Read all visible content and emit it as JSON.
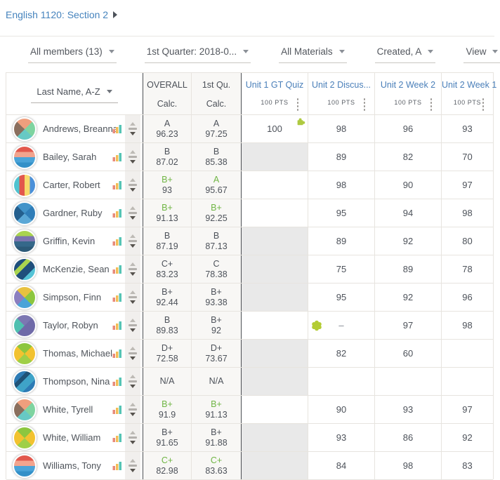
{
  "breadcrumb": {
    "label": "English 1120: Section 2"
  },
  "filters": [
    {
      "label": "All members (13)"
    },
    {
      "label": "1st Quarter: 2018-0..."
    },
    {
      "label": "All Materials"
    },
    {
      "label": "Created, A"
    },
    {
      "label": "View"
    }
  ],
  "table": {
    "name_header": "Last Name, A-Z",
    "grade_columns": [
      {
        "title": "OVERALL",
        "subtitle": "Calc."
      },
      {
        "title": "1st Qu.",
        "subtitle": "Calc."
      }
    ],
    "assignment_columns": [
      {
        "title": "Unit 1 GT Quiz",
        "points": "100 PTS"
      },
      {
        "title": "Unit 2 Discus...",
        "points": "100 PTS"
      },
      {
        "title": "Unit 2 Week 2",
        "points": "100 PTS"
      },
      {
        "title": "Unit 2 Week 1",
        "points": "100 PTS"
      }
    ],
    "rows": [
      {
        "name": "Andrews, Breanna",
        "avatar": {
          "style": "pie",
          "colors": [
            "#7fd4a0",
            "#67c9c4",
            "#8a6f5e",
            "#ef9f7d"
          ]
        },
        "overall": {
          "letter": "A",
          "value": "96.23"
        },
        "q1": {
          "letter": "A",
          "value": "97.25"
        },
        "green": false,
        "cells": [
          {
            "value": "100",
            "state": "normal",
            "icon": "puzzle-icon"
          },
          {
            "value": "98",
            "state": "normal"
          },
          {
            "value": "96",
            "state": "normal"
          },
          {
            "value": "93",
            "state": "normal"
          }
        ]
      },
      {
        "name": "Bailey, Sarah",
        "avatar": {
          "style": "bands",
          "colors": [
            "#e2574c",
            "#f2a48e",
            "#4aa3d8",
            "#3390c8"
          ]
        },
        "overall": {
          "letter": "B",
          "value": "87.02"
        },
        "q1": {
          "letter": "B",
          "value": "85.38"
        },
        "green": false,
        "cells": [
          {
            "value": "",
            "state": "excused"
          },
          {
            "value": "89",
            "state": "normal"
          },
          {
            "value": "82",
            "state": "normal"
          },
          {
            "value": "70",
            "state": "normal"
          }
        ]
      },
      {
        "name": "Carter, Robert",
        "avatar": {
          "style": "stripes",
          "colors": [
            "#4fc3d0",
            "#e2574c",
            "#f7d96a",
            "#4a90d9"
          ]
        },
        "overall": {
          "letter": "B+",
          "value": "93"
        },
        "q1": {
          "letter": "A",
          "value": "95.67"
        },
        "green": true,
        "cells": [
          {
            "value": "",
            "state": "empty"
          },
          {
            "value": "98",
            "state": "normal"
          },
          {
            "value": "90",
            "state": "normal"
          },
          {
            "value": "97",
            "state": "normal"
          }
        ]
      },
      {
        "name": "Gardner, Ruby",
        "avatar": {
          "style": "pie",
          "colors": [
            "#2f7db8",
            "#5aa7d6",
            "#245f8e",
            "#4193c9"
          ]
        },
        "overall": {
          "letter": "B+",
          "value": "91.13"
        },
        "q1": {
          "letter": "B+",
          "value": "92.25"
        },
        "green": true,
        "cells": [
          {
            "value": "",
            "state": "empty"
          },
          {
            "value": "95",
            "state": "normal"
          },
          {
            "value": "94",
            "state": "normal"
          },
          {
            "value": "98",
            "state": "normal"
          }
        ]
      },
      {
        "name": "Griffin, Kevin",
        "avatar": {
          "style": "bands",
          "colors": [
            "#a9d44f",
            "#7b74b0",
            "#35688a",
            "#2c5a78"
          ]
        },
        "overall": {
          "letter": "B",
          "value": "87.19"
        },
        "q1": {
          "letter": "B",
          "value": "87.13"
        },
        "green": false,
        "cells": [
          {
            "value": "",
            "state": "excused"
          },
          {
            "value": "89",
            "state": "normal"
          },
          {
            "value": "92",
            "state": "normal"
          },
          {
            "value": "80",
            "state": "normal"
          }
        ]
      },
      {
        "name": "McKenzie, Sean",
        "avatar": {
          "style": "diag",
          "colors": [
            "#1f4f7c",
            "#a9d44f",
            "#1f4f7c",
            "#54c3d6"
          ]
        },
        "overall": {
          "letter": "C+",
          "value": "83.23"
        },
        "q1": {
          "letter": "C",
          "value": "78.38"
        },
        "green": false,
        "cells": [
          {
            "value": "",
            "state": "excused"
          },
          {
            "value": "75",
            "state": "normal"
          },
          {
            "value": "89",
            "state": "normal"
          },
          {
            "value": "78",
            "state": "normal"
          }
        ]
      },
      {
        "name": "Simpson, Finn",
        "avatar": {
          "style": "pie",
          "colors": [
            "#8cc63f",
            "#4aa3d8",
            "#8b7fc0",
            "#e8c13f"
          ]
        },
        "overall": {
          "letter": "B+",
          "value": "92.44"
        },
        "q1": {
          "letter": "B+",
          "value": "93.38"
        },
        "green": false,
        "cells": [
          {
            "value": "",
            "state": "excused"
          },
          {
            "value": "95",
            "state": "normal"
          },
          {
            "value": "92",
            "state": "normal"
          },
          {
            "value": "96",
            "state": "normal"
          }
        ]
      },
      {
        "name": "Taylor, Robyn",
        "avatar": {
          "style": "pie",
          "colors": [
            "#6f6aa8",
            "#6f6aa8",
            "#4fc0b0",
            "#7c77b2"
          ]
        },
        "overall": {
          "letter": "B",
          "value": "89.83"
        },
        "q1": {
          "letter": "B+",
          "value": "92"
        },
        "green": false,
        "cells": [
          {
            "value": "",
            "state": "empty"
          },
          {
            "value": "–",
            "state": "dash",
            "icon": "flower-icon"
          },
          {
            "value": "97",
            "state": "normal"
          },
          {
            "value": "98",
            "state": "normal"
          }
        ]
      },
      {
        "name": "Thomas, Michael",
        "avatar": {
          "style": "pie",
          "colors": [
            "#f2c230",
            "#9fcf47",
            "#f2c230",
            "#8cc63f"
          ]
        },
        "overall": {
          "letter": "D+",
          "value": "72.58"
        },
        "q1": {
          "letter": "D+",
          "value": "73.67"
        },
        "green": false,
        "cells": [
          {
            "value": "",
            "state": "excused"
          },
          {
            "value": "82",
            "state": "normal"
          },
          {
            "value": "60",
            "state": "normal"
          },
          {
            "value": "",
            "state": "empty"
          }
        ]
      },
      {
        "name": "Thompson, Nina",
        "avatar": {
          "style": "diag",
          "colors": [
            "#2d7bb5",
            "#1f5277",
            "#3fa3c8",
            "#2d7bb5"
          ]
        },
        "overall": {
          "letter": "",
          "value": "N/A"
        },
        "q1": {
          "letter": "",
          "value": "N/A"
        },
        "green": false,
        "cells": [
          {
            "value": "",
            "state": "excused"
          },
          {
            "value": "",
            "state": "empty"
          },
          {
            "value": "",
            "state": "empty"
          },
          {
            "value": "",
            "state": "empty"
          }
        ]
      },
      {
        "name": "White, Tyrell",
        "avatar": {
          "style": "pie",
          "colors": [
            "#7fd4a0",
            "#67c9c4",
            "#8a6f5e",
            "#ef9f7d"
          ]
        },
        "overall": {
          "letter": "B+",
          "value": "91.9"
        },
        "q1": {
          "letter": "B+",
          "value": "91.13"
        },
        "green": true,
        "cells": [
          {
            "value": "",
            "state": "empty"
          },
          {
            "value": "90",
            "state": "normal"
          },
          {
            "value": "93",
            "state": "normal"
          },
          {
            "value": "97",
            "state": "normal"
          }
        ]
      },
      {
        "name": "White, William",
        "avatar": {
          "style": "pie",
          "colors": [
            "#f2c230",
            "#9fcf47",
            "#f2c230",
            "#8cc63f"
          ]
        },
        "overall": {
          "letter": "B+",
          "value": "91.65"
        },
        "q1": {
          "letter": "B+",
          "value": "91.88"
        },
        "green": false,
        "cells": [
          {
            "value": "",
            "state": "excused"
          },
          {
            "value": "93",
            "state": "normal"
          },
          {
            "value": "86",
            "state": "normal"
          },
          {
            "value": "92",
            "state": "normal"
          }
        ]
      },
      {
        "name": "Williams, Tony",
        "avatar": {
          "style": "bands",
          "colors": [
            "#e2574c",
            "#f2a48e",
            "#4aa3d8",
            "#3390c8"
          ]
        },
        "overall": {
          "letter": "C+",
          "value": "82.98"
        },
        "q1": {
          "letter": "C+",
          "value": "83.63"
        },
        "green": true,
        "cells": [
          {
            "value": "",
            "state": "excused"
          },
          {
            "value": "84",
            "state": "normal"
          },
          {
            "value": "98",
            "state": "normal"
          },
          {
            "value": "83",
            "state": "normal"
          }
        ]
      }
    ]
  },
  "colors": {
    "link_blue": "#4583bd",
    "column_header_blue": "#4a7fb9",
    "green_grade": "#6fb544",
    "icon_green": "#aec940",
    "excused_bg": "#e9e9e9",
    "dark_text": "#4d525a"
  }
}
